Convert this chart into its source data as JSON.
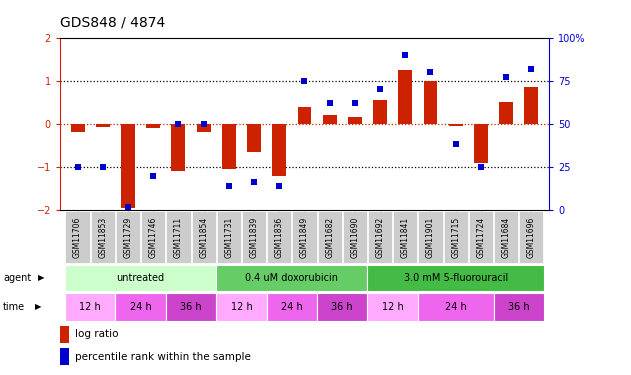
{
  "title": "GDS848 / 4874",
  "samples": [
    "GSM11706",
    "GSM11853",
    "GSM11729",
    "GSM11746",
    "GSM11711",
    "GSM11854",
    "GSM11731",
    "GSM11839",
    "GSM11836",
    "GSM11849",
    "GSM11682",
    "GSM11690",
    "GSM11692",
    "GSM11841",
    "GSM11901",
    "GSM11715",
    "GSM11724",
    "GSM11684",
    "GSM11696"
  ],
  "log_ratio": [
    -0.18,
    -0.08,
    -1.95,
    -0.1,
    -1.1,
    -0.2,
    -1.05,
    -0.65,
    -1.2,
    0.38,
    0.2,
    0.15,
    0.55,
    1.25,
    1.0,
    -0.05,
    -0.9,
    0.5,
    0.85
  ],
  "percentile": [
    25,
    25,
    2,
    20,
    50,
    50,
    14,
    16,
    14,
    75,
    62,
    62,
    70,
    90,
    80,
    38,
    25,
    77,
    82
  ],
  "agents": [
    {
      "label": "untreated",
      "start": 0,
      "end": 6,
      "color": "#ccffcc"
    },
    {
      "label": "0.4 uM doxorubicin",
      "start": 6,
      "end": 12,
      "color": "#66cc66"
    },
    {
      "label": "3.0 mM 5-fluorouracil",
      "start": 12,
      "end": 19,
      "color": "#44bb44"
    }
  ],
  "times": [
    {
      "label": "12 h",
      "start": 0,
      "end": 2,
      "color": "#ffaaff"
    },
    {
      "label": "24 h",
      "start": 2,
      "end": 4,
      "color": "#ee66ee"
    },
    {
      "label": "36 h",
      "start": 4,
      "end": 6,
      "color": "#cc44cc"
    },
    {
      "label": "12 h",
      "start": 6,
      "end": 8,
      "color": "#ffaaff"
    },
    {
      "label": "24 h",
      "start": 8,
      "end": 10,
      "color": "#ee66ee"
    },
    {
      "label": "36 h",
      "start": 10,
      "end": 12,
      "color": "#cc44cc"
    },
    {
      "label": "12 h",
      "start": 12,
      "end": 14,
      "color": "#ffaaff"
    },
    {
      "label": "24 h",
      "start": 14,
      "end": 17,
      "color": "#ee66ee"
    },
    {
      "label": "36 h",
      "start": 17,
      "end": 19,
      "color": "#cc44cc"
    }
  ],
  "bar_color": "#cc2200",
  "dot_color": "#0000cc",
  "ylim_left": [
    -2,
    2
  ],
  "ylim_right": [
    0,
    100
  ],
  "yticks_left": [
    -2,
    -1,
    0,
    1,
    2
  ],
  "yticks_right": [
    0,
    25,
    50,
    75,
    100
  ],
  "ytick_labels_right": [
    "0",
    "25",
    "50",
    "75",
    "100%"
  ],
  "background_color": "#ffffff",
  "label_color_left": "#cc2200",
  "label_color_right": "#0000cc"
}
